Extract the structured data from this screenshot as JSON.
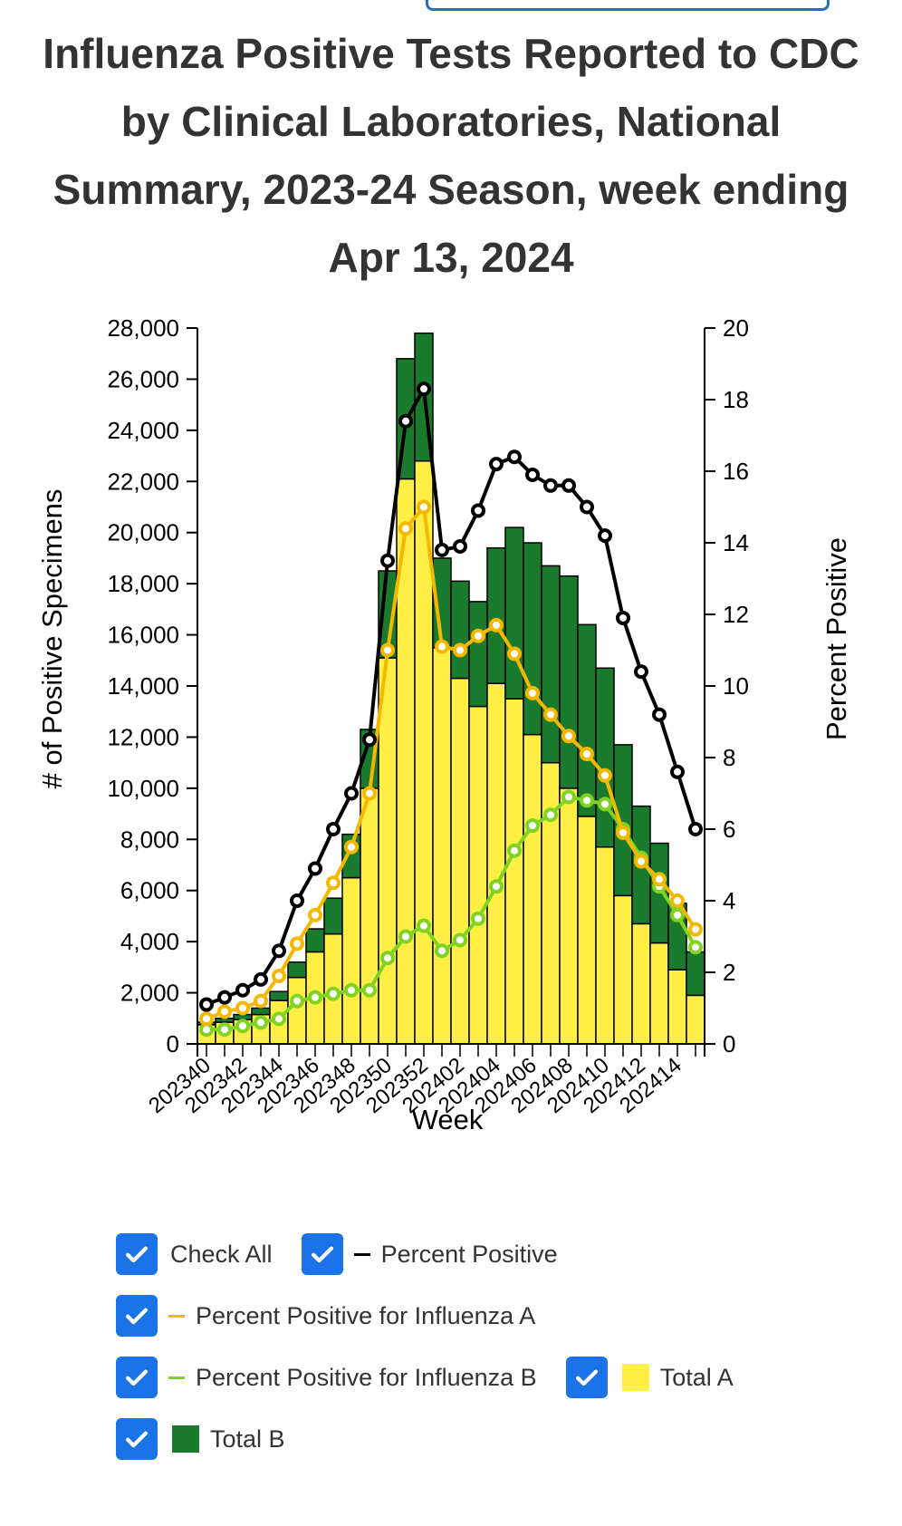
{
  "title": "Influenza Positive Tests Reported to CDC by Clinical Laboratories, National Summary, 2023-24 Season, week ending Apr 13, 2024",
  "colors": {
    "total_a": "#ffee44",
    "total_b": "#1a7a2e",
    "pct_positive": "#000000",
    "pct_a": "#f5b800",
    "pct_b": "#7fd321",
    "checkbox": "#1a73e8"
  },
  "legend": {
    "check_all": "Check All",
    "percent_positive": "Percent Positive",
    "percent_positive_a": "Percent Positive for Influenza A",
    "percent_positive_b": "Percent Positive for Influenza B",
    "total_a": "Total A",
    "total_b": "Total B"
  },
  "chart_data": {
    "type": "bar",
    "stacked": true,
    "xlabel": "Week",
    "ylabel": "# of Positive Specimens",
    "y2label": "Percent Positive",
    "ylim": [
      0,
      28000
    ],
    "y2lim": [
      0,
      20
    ],
    "yticks": [
      "0",
      "2,000",
      "4,000",
      "6,000",
      "8,000",
      "10,000",
      "12,000",
      "14,000",
      "16,000",
      "18,000",
      "20,000",
      "22,000",
      "24,000",
      "26,000",
      "28,000"
    ],
    "y2ticks": [
      "0",
      "2",
      "4",
      "6",
      "8",
      "10",
      "12",
      "14",
      "16",
      "18",
      "20"
    ],
    "categories": [
      "202340",
      "202341",
      "202342",
      "202343",
      "202344",
      "202345",
      "202346",
      "202347",
      "202348",
      "202349",
      "202350",
      "202351",
      "202352",
      "202401",
      "202402",
      "202403",
      "202404",
      "202405",
      "202406",
      "202407",
      "202408",
      "202409",
      "202410",
      "202411",
      "202412",
      "202413",
      "202414",
      "202415"
    ],
    "x_tick_labels": [
      "202340",
      "202342",
      "202344",
      "202346",
      "202348",
      "202350",
      "202352",
      "202402",
      "202404",
      "202406",
      "202408",
      "202410",
      "202412",
      "202414"
    ],
    "series": [
      {
        "name": "Total A",
        "kind": "bar",
        "axis": "left",
        "values": [
          750,
          850,
          950,
          1150,
          1700,
          2600,
          3600,
          4300,
          6500,
          10000,
          15100,
          22100,
          22800,
          15500,
          14300,
          13200,
          14100,
          13500,
          12100,
          11000,
          10000,
          8900,
          7700,
          5800,
          4700,
          3950,
          2900,
          1900
        ]
      },
      {
        "name": "Total B",
        "kind": "bar",
        "axis": "left",
        "values": [
          100,
          150,
          200,
          250,
          350,
          600,
          900,
          1400,
          1700,
          2300,
          3400,
          4700,
          5000,
          3500,
          3800,
          4100,
          5300,
          6700,
          7500,
          7700,
          8300,
          7500,
          7000,
          5900,
          4600,
          3900,
          2600,
          1700
        ]
      },
      {
        "name": "Percent Positive",
        "kind": "line",
        "axis": "right",
        "values": [
          1.1,
          1.3,
          1.5,
          1.8,
          2.6,
          4.0,
          4.9,
          6.0,
          7.0,
          8.5,
          13.5,
          17.4,
          18.3,
          13.8,
          13.9,
          14.9,
          16.2,
          16.4,
          15.9,
          15.6,
          15.6,
          15.0,
          14.2,
          11.9,
          10.4,
          9.2,
          7.6,
          6.0
        ]
      },
      {
        "name": "Percent Positive for Influenza A",
        "kind": "line",
        "axis": "right",
        "values": [
          0.7,
          0.9,
          1.0,
          1.2,
          1.9,
          2.8,
          3.6,
          4.5,
          5.5,
          7.0,
          11.0,
          14.4,
          15.0,
          11.1,
          11.0,
          11.4,
          11.7,
          10.9,
          9.8,
          9.2,
          8.6,
          8.1,
          7.5,
          5.9,
          5.1,
          4.6,
          4.0,
          3.2
        ]
      },
      {
        "name": "Percent Positive for Influenza B",
        "kind": "line",
        "axis": "right",
        "values": [
          0.4,
          0.4,
          0.5,
          0.6,
          0.7,
          1.2,
          1.3,
          1.4,
          1.5,
          1.5,
          2.4,
          3.0,
          3.3,
          2.6,
          2.9,
          3.5,
          4.4,
          5.4,
          6.1,
          6.4,
          6.9,
          6.8,
          6.7,
          6.0,
          5.2,
          4.4,
          3.6,
          2.7
        ]
      }
    ]
  }
}
